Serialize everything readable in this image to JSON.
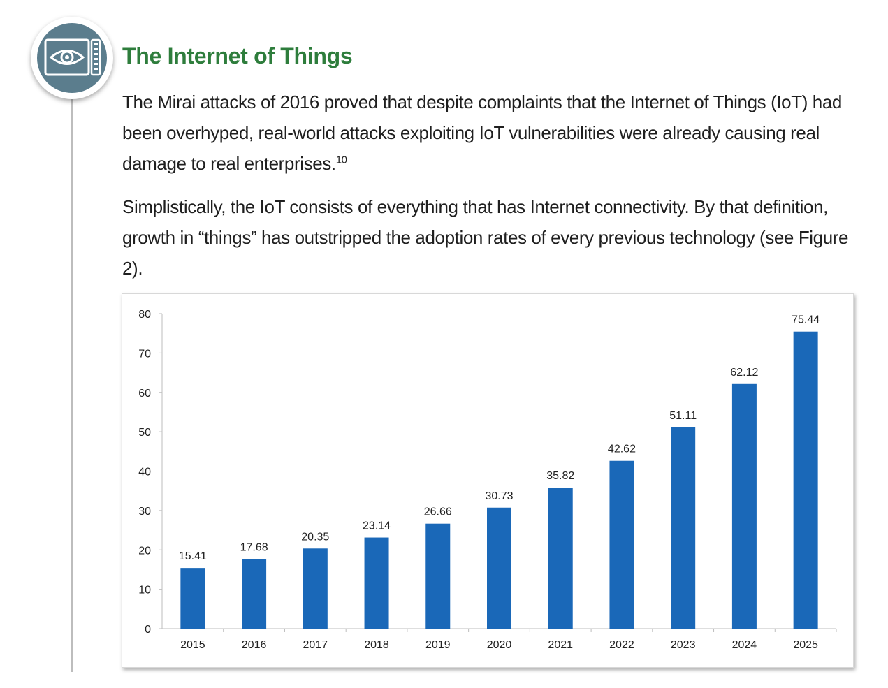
{
  "heading": {
    "icon": "eye-surveillance-icon",
    "title": "The Internet of Things"
  },
  "body": {
    "p1_text": "The Mirai attacks of 2016 proved that despite complaints that the Internet of Things (IoT) had been overhyped, real-world attacks exploiting IoT vulnerabilities were already causing real damage to real enterprises.",
    "p1_footnote": "10",
    "p2_text": "Simplistically, the IoT consists of everything that has Internet connectivity. By that definition, growth in “things” has outstripped the adoption rates of every previous technology (see Figure 2)."
  },
  "colors": {
    "title_green": "#2e7d3c",
    "bar_blue": "#1a68b8",
    "icon_slate": "#5b7d8d"
  },
  "chart_data": {
    "type": "bar",
    "categories": [
      "2015",
      "2016",
      "2017",
      "2018",
      "2019",
      "2020",
      "2021",
      "2022",
      "2023",
      "2024",
      "2025"
    ],
    "values": [
      15.41,
      17.68,
      20.35,
      23.14,
      26.66,
      30.73,
      35.82,
      42.62,
      51.11,
      62.12,
      75.44
    ],
    "value_labels": [
      "15.41",
      "17.68",
      "20.35",
      "23.14",
      "26.66",
      "30.73",
      "35.82",
      "42.62",
      "51.11",
      "62.12",
      "75.44"
    ],
    "yticks": [
      "0",
      "10",
      "20",
      "30",
      "40",
      "50",
      "60",
      "70",
      "80"
    ],
    "ylim": [
      0,
      80
    ],
    "grid": false,
    "legend": "none",
    "data_labels": "above-bars"
  }
}
